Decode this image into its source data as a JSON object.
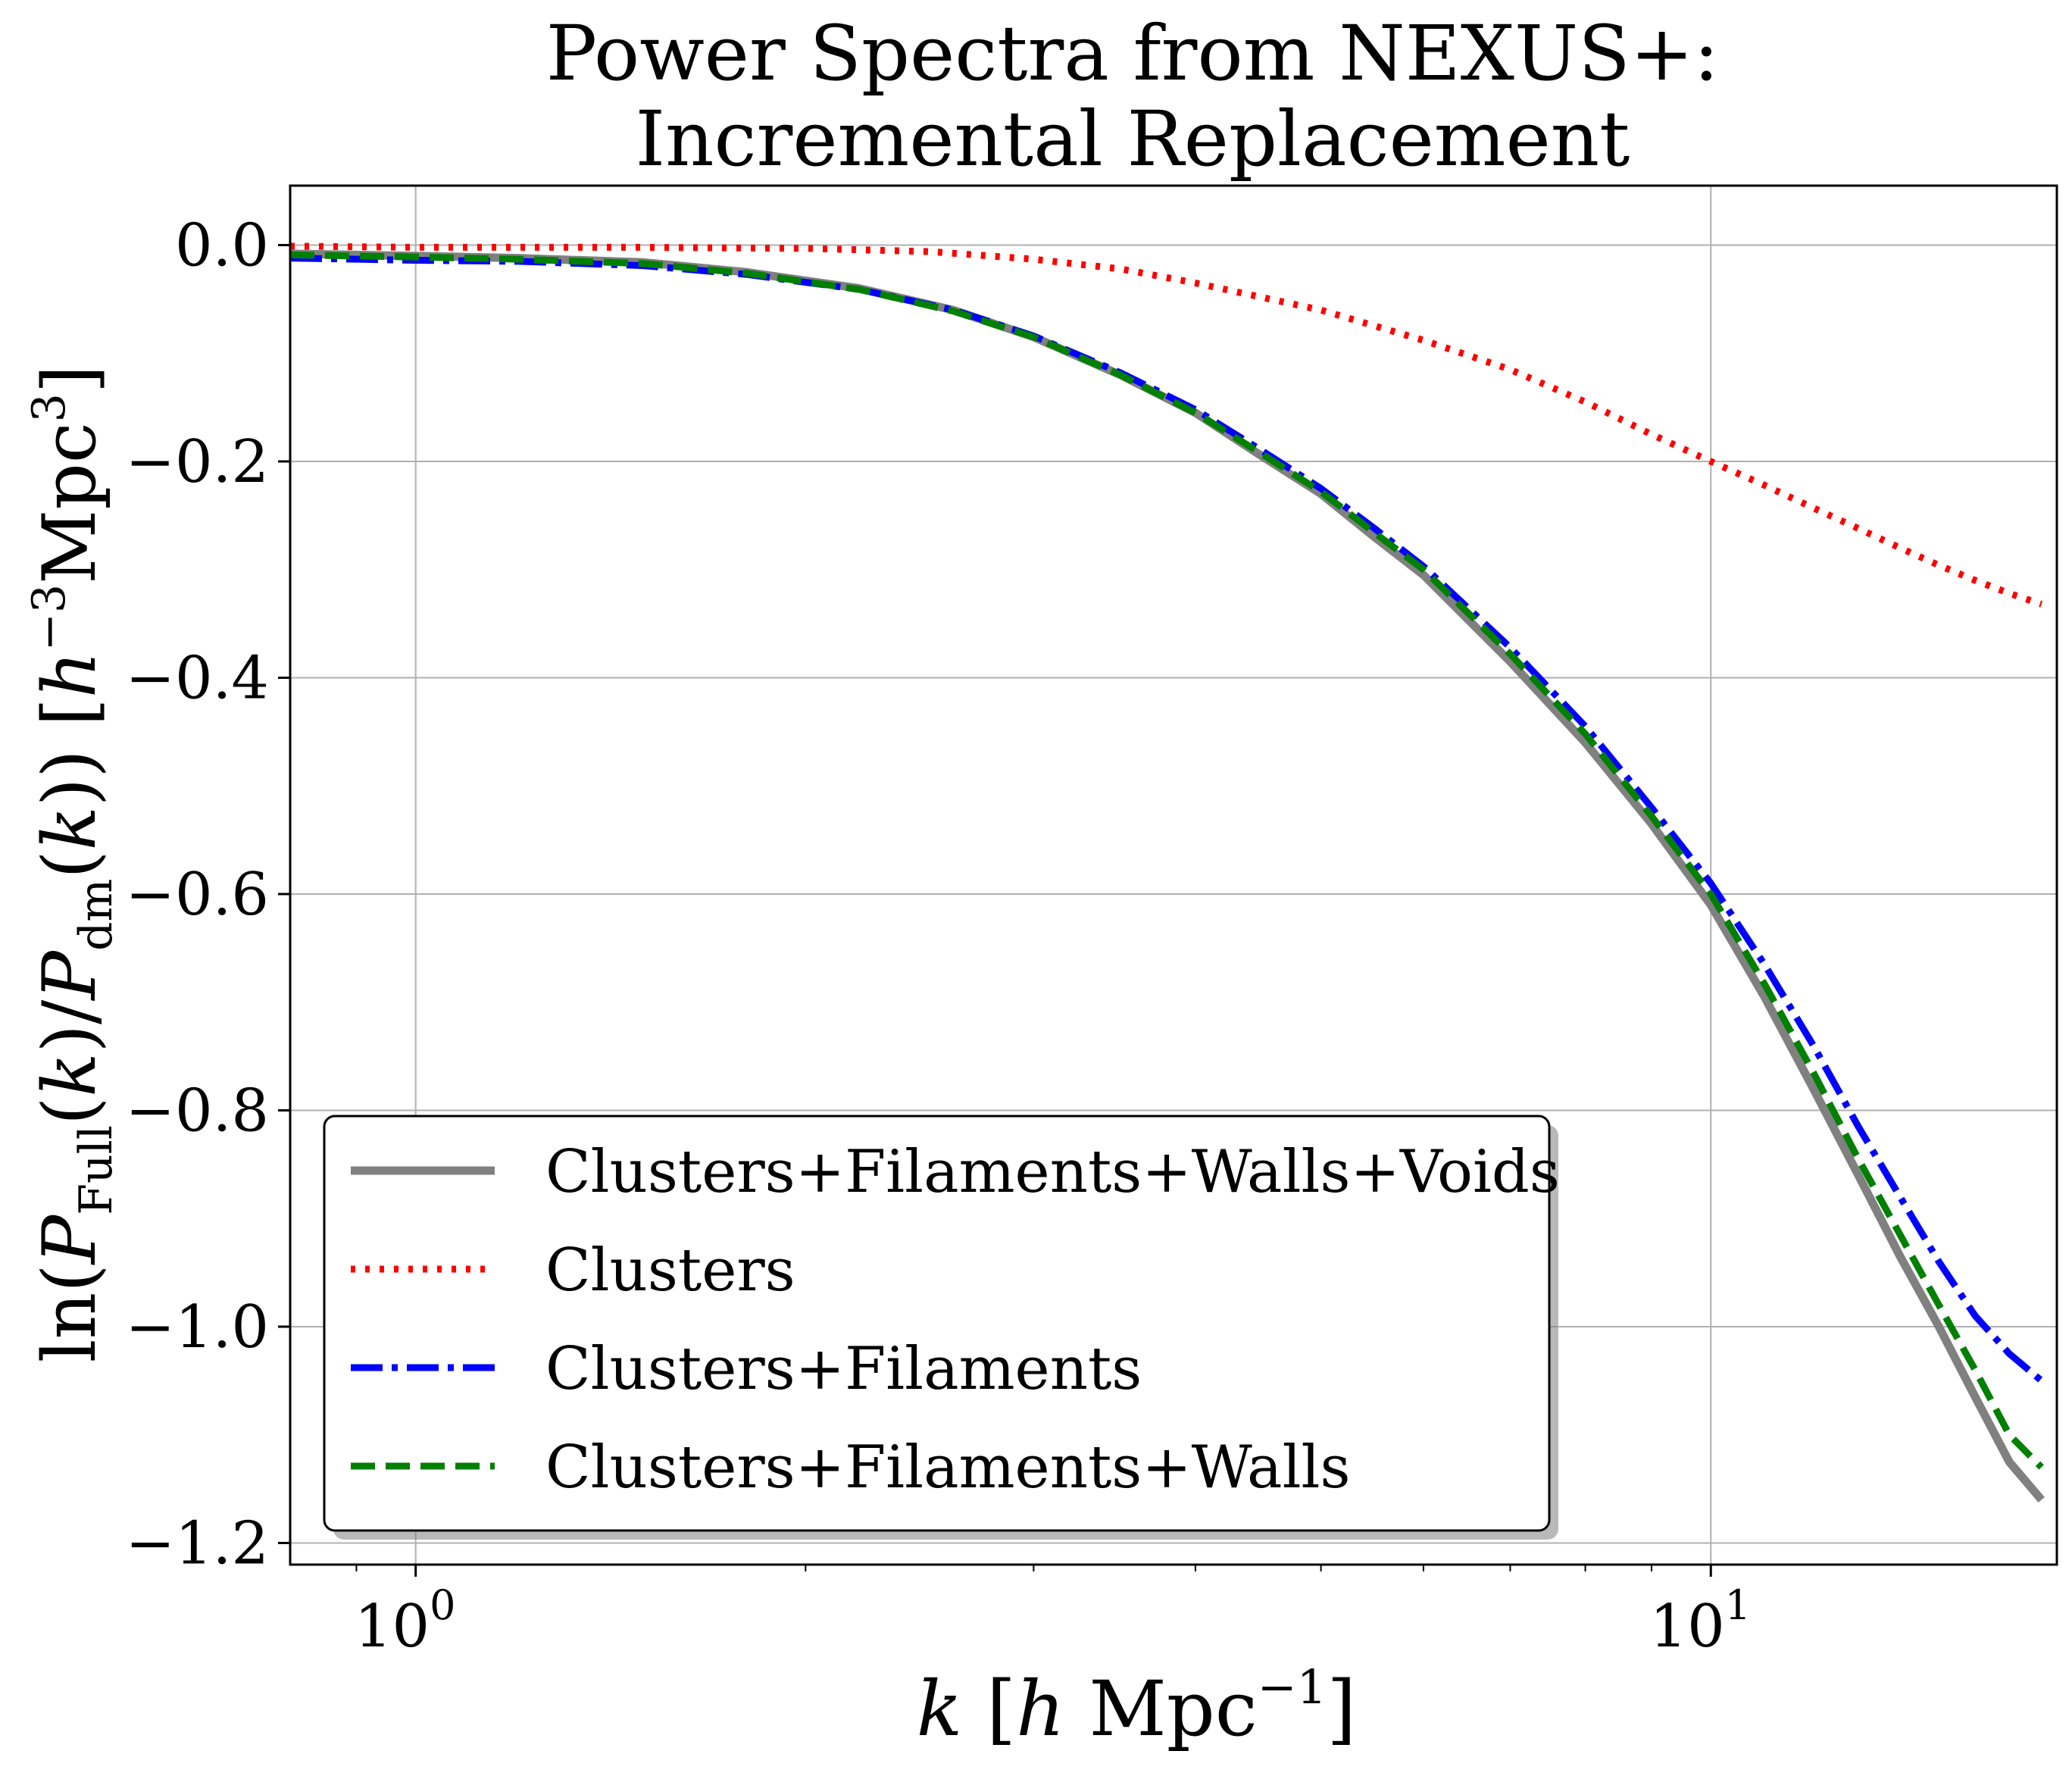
{
  "chart_data": {
    "type": "line",
    "title_lines": [
      "Power Spectra from NEXUS+:",
      "Incremental Replacement"
    ],
    "xlabel": "k [h Mpc⁻¹]",
    "ylabel": "ln(P_Full(k)/P_dm(k)) [h⁻³Mpc³]",
    "x_scale": "log",
    "xlim": [
      0.8,
      18.5
    ],
    "ylim": [
      -1.22,
      0.055
    ],
    "grid": true,
    "legend_position": "lower left",
    "x_ticks": [
      {
        "value": 1,
        "label": "10",
        "exp": "0"
      },
      {
        "value": 10,
        "label": "10",
        "exp": "1"
      }
    ],
    "y_ticks": [
      {
        "value": 0.0,
        "label": "0.0"
      },
      {
        "value": -0.2,
        "label": "−0.2"
      },
      {
        "value": -0.4,
        "label": "−0.4"
      },
      {
        "value": -0.6,
        "label": "−0.6"
      },
      {
        "value": -0.8,
        "label": "−0.8"
      },
      {
        "value": -1.0,
        "label": "−1.0"
      },
      {
        "value": -1.2,
        "label": "−1.2"
      }
    ],
    "series": [
      {
        "name": "Clusters+Filaments+Walls+Voids",
        "color": "#808080",
        "style": "solid",
        "x": [
          0.8,
          1.0,
          1.2,
          1.5,
          1.8,
          2.2,
          2.6,
          3.0,
          3.5,
          4.0,
          4.5,
          5.0,
          5.5,
          6.0,
          7.0,
          8.0,
          9.0,
          10.0,
          11.0,
          12.0,
          13.0,
          14.0,
          15.0,
          16.0,
          17.0,
          18.0
        ],
        "y": [
          -0.008,
          -0.01,
          -0.012,
          -0.016,
          -0.025,
          -0.04,
          -0.06,
          -0.085,
          -0.12,
          -0.155,
          -0.195,
          -0.23,
          -0.27,
          -0.305,
          -0.385,
          -0.46,
          -0.535,
          -0.61,
          -0.695,
          -0.78,
          -0.86,
          -0.935,
          -1.0,
          -1.065,
          -1.125,
          -1.16
        ]
      },
      {
        "name": "Clusters",
        "color": "#ff0000",
        "style": "dotted",
        "x": [
          0.8,
          1.0,
          1.5,
          2.0,
          2.5,
          3.0,
          3.5,
          4.0,
          5.0,
          6.0,
          7.0,
          8.0,
          9.0,
          10.0,
          11.0,
          12.0,
          13.0,
          14.0,
          15.0,
          16.0,
          17.0,
          18.0
        ],
        "y": [
          -0.001,
          -0.002,
          -0.002,
          -0.003,
          -0.006,
          -0.013,
          -0.022,
          -0.035,
          -0.06,
          -0.088,
          -0.115,
          -0.145,
          -0.175,
          -0.2,
          -0.222,
          -0.243,
          -0.262,
          -0.28,
          -0.296,
          -0.31,
          -0.322,
          -0.332
        ]
      },
      {
        "name": "Clusters+Filaments",
        "color": "#0000ff",
        "style": "dashdot",
        "x": [
          0.8,
          1.0,
          1.2,
          1.5,
          1.8,
          2.2,
          2.6,
          3.0,
          3.5,
          4.0,
          4.5,
          5.0,
          5.5,
          6.0,
          7.0,
          8.0,
          9.0,
          10.0,
          11.0,
          12.0,
          13.0,
          14.0,
          15.0,
          16.0,
          17.0,
          18.0
        ],
        "y": [
          -0.012,
          -0.014,
          -0.015,
          -0.019,
          -0.027,
          -0.041,
          -0.06,
          -0.084,
          -0.118,
          -0.152,
          -0.19,
          -0.225,
          -0.262,
          -0.297,
          -0.372,
          -0.445,
          -0.52,
          -0.59,
          -0.665,
          -0.74,
          -0.815,
          -0.88,
          -0.94,
          -0.99,
          -1.025,
          -1.05
        ]
      },
      {
        "name": "Clusters+Filaments+Walls",
        "color": "#008000",
        "style": "dashed",
        "x": [
          0.8,
          1.0,
          1.2,
          1.5,
          1.8,
          2.2,
          2.6,
          3.0,
          3.5,
          4.0,
          4.5,
          5.0,
          5.5,
          6.0,
          7.0,
          8.0,
          9.0,
          10.0,
          11.0,
          12.0,
          13.0,
          14.0,
          15.0,
          16.0,
          17.0,
          18.0
        ],
        "y": [
          -0.009,
          -0.011,
          -0.013,
          -0.017,
          -0.026,
          -0.041,
          -0.061,
          -0.085,
          -0.12,
          -0.155,
          -0.193,
          -0.228,
          -0.266,
          -0.3,
          -0.378,
          -0.452,
          -0.528,
          -0.6,
          -0.683,
          -0.765,
          -0.845,
          -0.915,
          -0.98,
          -1.04,
          -1.1,
          -1.13
        ]
      }
    ]
  }
}
